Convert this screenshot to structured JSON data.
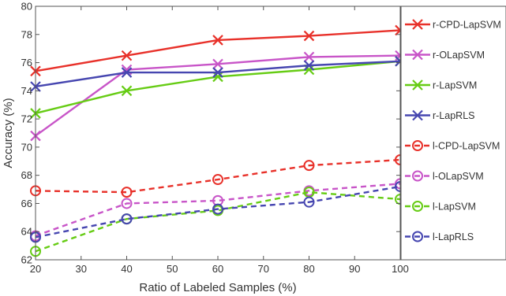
{
  "chart_data": {
    "type": "line",
    "xlabel": "Ratio of Labeled Samples (%)",
    "ylabel": "Accuracy (%)",
    "xlim": [
      20,
      100
    ],
    "ylim": [
      62,
      80
    ],
    "xticks": [
      20,
      30,
      40,
      50,
      60,
      70,
      80,
      90,
      100
    ],
    "yticks": [
      62,
      64,
      66,
      68,
      70,
      72,
      74,
      76,
      78,
      80
    ],
    "x": [
      20,
      40,
      60,
      80,
      100
    ],
    "grid": false,
    "legend_position": "right",
    "series": [
      {
        "name": "r-CPD-LapSVM",
        "values": [
          75.4,
          76.5,
          77.6,
          77.9,
          78.3
        ],
        "color": "#e8312a",
        "marker": "x",
        "line": "solid"
      },
      {
        "name": "r-OLapSVM",
        "values": [
          70.8,
          75.5,
          75.9,
          76.4,
          76.5
        ],
        "color": "#c855c8",
        "marker": "x",
        "line": "solid"
      },
      {
        "name": "r-LapSVM",
        "values": [
          72.4,
          74.0,
          75.0,
          75.5,
          76.1
        ],
        "color": "#66cc14",
        "marker": "x",
        "line": "solid"
      },
      {
        "name": "r-LapRLS",
        "values": [
          74.3,
          75.3,
          75.3,
          75.8,
          76.1
        ],
        "color": "#4646b0",
        "marker": "x",
        "line": "solid"
      },
      {
        "name": "l-CPD-LapSVM",
        "values": [
          66.9,
          66.8,
          67.7,
          68.7,
          69.1
        ],
        "color": "#e8312a",
        "marker": "circle",
        "line": "dashed"
      },
      {
        "name": "l-OLapSVM",
        "values": [
          63.7,
          66.0,
          66.2,
          66.9,
          67.4
        ],
        "color": "#c855c8",
        "marker": "circle",
        "line": "dashed"
      },
      {
        "name": "l-LapSVM",
        "values": [
          62.6,
          64.9,
          65.5,
          66.8,
          66.3
        ],
        "color": "#66cc14",
        "marker": "circle",
        "line": "dashed"
      },
      {
        "name": "l-LapRLS",
        "values": [
          63.6,
          64.9,
          65.6,
          66.1,
          67.2
        ],
        "color": "#4646b0",
        "marker": "circle",
        "line": "dashed"
      }
    ]
  }
}
